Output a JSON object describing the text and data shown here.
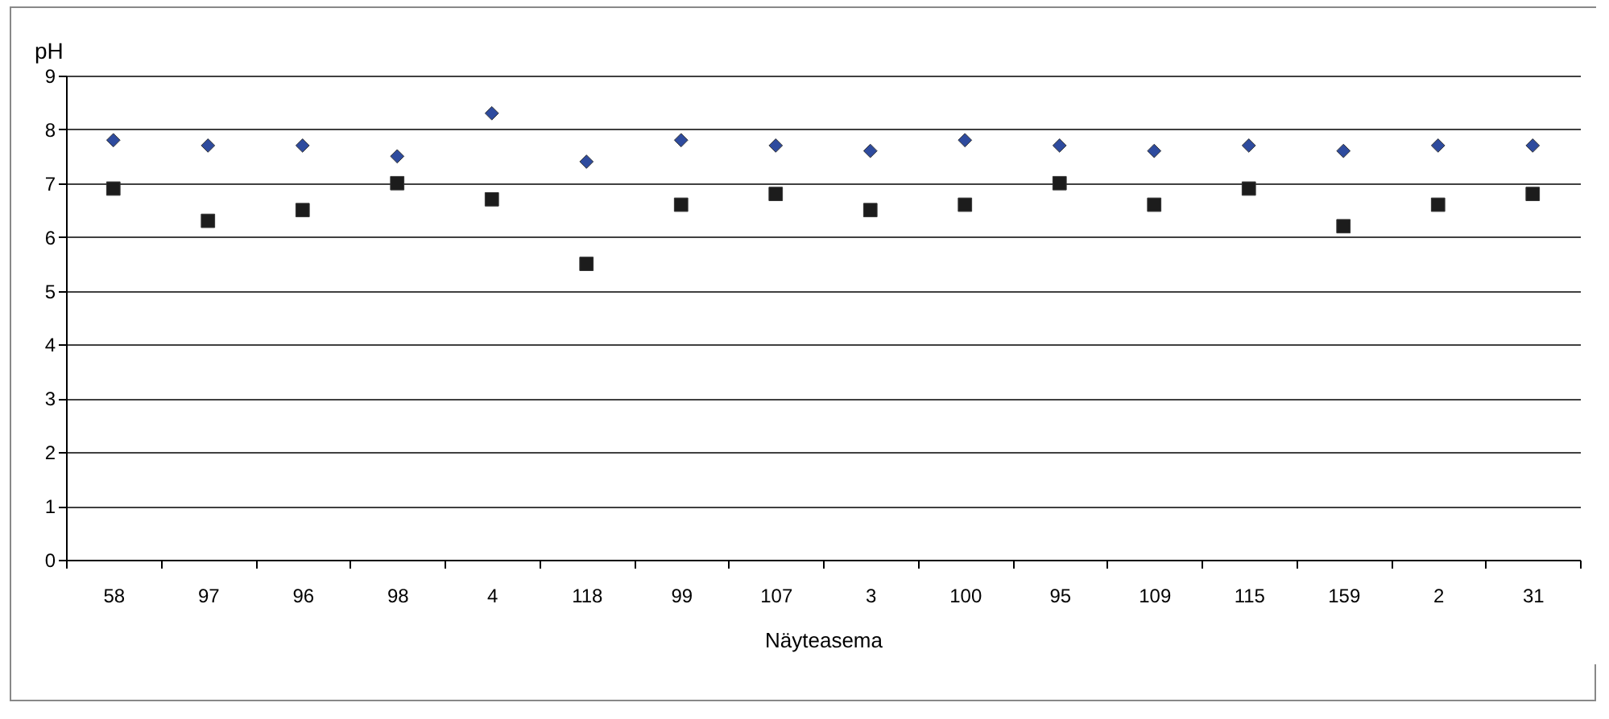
{
  "chart_data": {
    "type": "scatter",
    "xlabel": "Näyteasema",
    "ylabel": "pH",
    "categories": [
      "58",
      "97",
      "96",
      "98",
      "4",
      "118",
      "99",
      "107",
      "3",
      "100",
      "95",
      "109",
      "115",
      "159",
      "2",
      "31"
    ],
    "series": [
      {
        "color": "#2e4b9e",
        "marker": "diamond",
        "values": [
          7.8,
          7.7,
          7.7,
          7.5,
          8.3,
          7.4,
          7.8,
          7.7,
          7.6,
          7.8,
          7.7,
          7.6,
          7.7,
          7.6,
          7.7,
          7.7
        ]
      },
      {
        "color": "#1c1c1c",
        "marker": "square",
        "values": [
          6.9,
          6.3,
          6.5,
          7.0,
          6.7,
          5.5,
          6.6,
          6.8,
          6.5,
          6.6,
          7.0,
          6.6,
          6.9,
          6.2,
          6.6,
          6.8
        ]
      }
    ],
    "ylim": [
      0,
      9
    ],
    "yticks": [
      0,
      1,
      2,
      3,
      4,
      5,
      6,
      7,
      8,
      9
    ],
    "grid": "y"
  }
}
